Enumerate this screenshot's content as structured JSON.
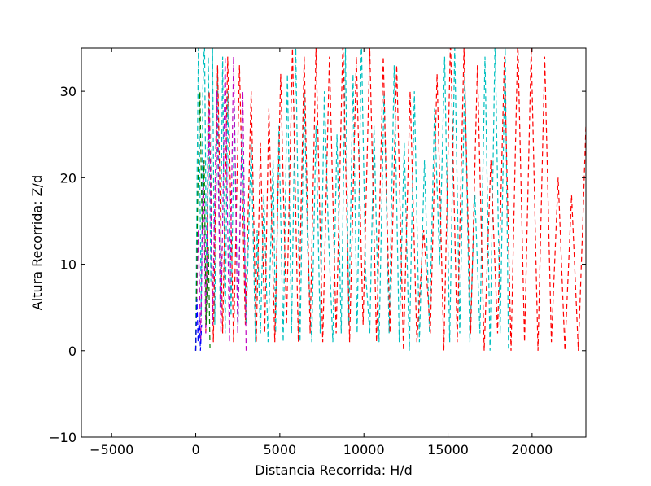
{
  "chart_data": {
    "type": "line",
    "title": "",
    "xlabel": "Distancia Recorrida: H/d",
    "ylabel": "Altura Recorrida: Z/d",
    "xlim": [
      -6800,
      23200
    ],
    "ylim": [
      -10,
      35
    ],
    "xticks": [
      -5000,
      0,
      5000,
      10000,
      15000,
      20000
    ],
    "yticks": [
      -10,
      0,
      10,
      20,
      30
    ],
    "x_tick_labels": [
      "−5000",
      "0",
      "5000",
      "10000",
      "15000",
      "20000"
    ],
    "y_tick_labels": [
      "−10",
      "0",
      "10",
      "20",
      "30"
    ],
    "grid": false,
    "legend": "none",
    "series": [
      {
        "color": "#00bfbf",
        "line_style": "dashed",
        "x": [
          0,
          80,
          160,
          330,
          420,
          520,
          650,
          750,
          900,
          1000,
          1130,
          1300,
          1450,
          1600,
          1750,
          1900,
          2100,
          2300,
          2500,
          2750,
          3000,
          3300,
          3550,
          3650,
          3850,
          4050,
          4300,
          4600,
          4750,
          4950,
          5200,
          5450,
          5700,
          5950,
          6200,
          6450,
          6650,
          6900,
          7150,
          7400,
          7650,
          7900,
          8150,
          8400,
          8650,
          8900,
          9100,
          9350,
          9600,
          9850,
          10100,
          10350,
          10600,
          10900,
          11200,
          11500,
          11800,
          12100,
          12400,
          12700,
          13000,
          13300,
          13600,
          13900,
          14200,
          14500,
          14800,
          15100,
          15400,
          15700,
          16000,
          16300,
          16600,
          16900,
          17200,
          17500,
          17800,
          18100,
          18400,
          18600
        ],
        "y": [
          0,
          20,
          35,
          4,
          30,
          36,
          6,
          34,
          8,
          35,
          3,
          33,
          5,
          34,
          2,
          30,
          4,
          28,
          2,
          26,
          3,
          24,
          1,
          14,
          2,
          18,
          1,
          22,
          2,
          26,
          1,
          32,
          2,
          35,
          1,
          30,
          12,
          1,
          26,
          2,
          30,
          13,
          1,
          25,
          2,
          35,
          3,
          32,
          2,
          36,
          9,
          2,
          26,
          1,
          30,
          2,
          33,
          1,
          24,
          0,
          30,
          1,
          22,
          2,
          28,
          10,
          34,
          1,
          35,
          2,
          32,
          1,
          18,
          2,
          34,
          0,
          36,
          2,
          35,
          0
        ]
      },
      {
        "color": "#ff0000",
        "line_style": "dashed",
        "x": [
          600,
          800,
          1050,
          1300,
          1600,
          1900,
          2250,
          2600,
          2950,
          3300,
          3600,
          3850,
          4100,
          4350,
          4700,
          5050,
          5400,
          5750,
          6100,
          6450,
          6800,
          7150,
          7550,
          7950,
          8350,
          8750,
          9150,
          9550,
          9950,
          10350,
          10750,
          11150,
          11550,
          11950,
          12350,
          12750,
          13150,
          13550,
          13950,
          14350,
          14750,
          15150,
          15550,
          15950,
          16350,
          16750,
          17150,
          17550,
          17950,
          18350,
          18750,
          19150,
          19550,
          19950,
          20350,
          20750,
          21150,
          21550,
          21950,
          22350,
          22750,
          23000,
          23200
        ],
        "y": [
          2,
          30,
          1,
          33,
          2,
          34,
          1,
          33,
          3,
          30,
          1,
          24,
          2,
          28,
          1,
          32,
          3,
          35,
          1,
          34,
          2,
          35,
          1,
          34,
          2,
          36,
          1,
          34,
          3,
          35,
          1,
          34,
          2,
          33,
          0,
          30,
          1,
          14,
          2,
          32,
          0,
          36,
          1,
          35,
          2,
          33,
          0,
          22,
          2,
          34,
          0,
          36,
          1,
          35,
          0,
          34,
          1,
          20,
          0,
          18,
          0,
          14,
          26
        ]
      },
      {
        "color": "#bf00bf",
        "line_style": "dashed",
        "x": [
          0,
          150,
          300,
          450,
          600,
          800,
          1000,
          1250,
          1500,
          1750,
          2000,
          2250,
          2500,
          2800,
          3000
        ],
        "y": [
          0,
          14,
          1,
          22,
          2,
          28,
          3,
          30,
          2,
          34,
          1,
          34,
          2,
          30,
          0
        ]
      },
      {
        "color": "#007f00",
        "line_style": "dashed",
        "x": [
          0,
          120,
          250,
          380,
          500,
          620,
          750,
          850
        ],
        "y": [
          0,
          18,
          30,
          14,
          22,
          3,
          12,
          0
        ]
      },
      {
        "color": "#0000ff",
        "line_style": "dashed",
        "x": [
          0,
          70,
          140,
          210,
          280,
          350
        ],
        "y": [
          0,
          6,
          1,
          4,
          0,
          3
        ]
      }
    ]
  }
}
